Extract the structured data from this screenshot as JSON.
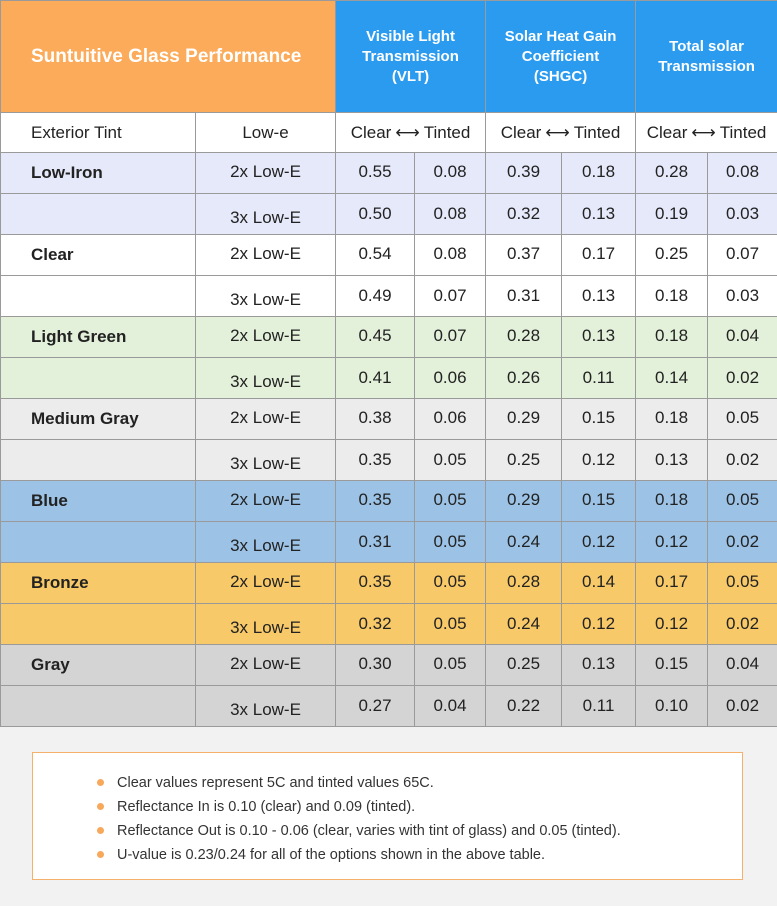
{
  "header": {
    "title": "Suntuitive Glass Performance",
    "metrics": [
      {
        "lines": [
          "Visible Light",
          "Transmission",
          "(VLT)"
        ]
      },
      {
        "lines": [
          "Solar Heat Gain",
          "Coefficient",
          "(SHGC)"
        ]
      },
      {
        "lines": [
          "Total solar",
          "Transmission"
        ]
      }
    ]
  },
  "subheader": {
    "tint_label": "Exterior Tint",
    "lowe_label": "Low-e",
    "clear_label": "Clear",
    "tinted_label": "Tinted"
  },
  "rows": [
    {
      "tint": "Low-Iron",
      "bg": "#e6e9fa",
      "r1": {
        "lowe": "2x Low-E",
        "v": [
          "0.55",
          "0.08",
          "0.39",
          "0.18",
          "0.28",
          "0.08"
        ]
      },
      "r2": {
        "lowe": "3x Low-E",
        "v": [
          "0.50",
          "0.08",
          "0.32",
          "0.13",
          "0.19",
          "0.03"
        ]
      }
    },
    {
      "tint": "Clear",
      "bg": "#ffffff",
      "r1": {
        "lowe": "2x Low-E",
        "v": [
          "0.54",
          "0.08",
          "0.37",
          "0.17",
          "0.25",
          "0.07"
        ]
      },
      "r2": {
        "lowe": "3x Low-E",
        "v": [
          "0.49",
          "0.07",
          "0.31",
          "0.13",
          "0.18",
          "0.03"
        ]
      }
    },
    {
      "tint": "Light Green",
      "bg": "#e3f0da",
      "r1": {
        "lowe": "2x Low-E",
        "v": [
          "0.45",
          "0.07",
          "0.28",
          "0.13",
          "0.18",
          "0.04"
        ]
      },
      "r2": {
        "lowe": "3x Low-E",
        "v": [
          "0.41",
          "0.06",
          "0.26",
          "0.11",
          "0.14",
          "0.02"
        ]
      }
    },
    {
      "tint": "Medium Gray",
      "bg": "#ececec",
      "r1": {
        "lowe": "2x Low-E",
        "v": [
          "0.38",
          "0.06",
          "0.29",
          "0.15",
          "0.18",
          "0.05"
        ]
      },
      "r2": {
        "lowe": "3x Low-E",
        "v": [
          "0.35",
          "0.05",
          "0.25",
          "0.12",
          "0.13",
          "0.02"
        ]
      }
    },
    {
      "tint": "Blue",
      "bg": "#9cc3e6",
      "r1": {
        "lowe": "2x Low-E",
        "v": [
          "0.35",
          "0.05",
          "0.29",
          "0.15",
          "0.18",
          "0.05"
        ]
      },
      "r2": {
        "lowe": "3x Low-E",
        "v": [
          "0.31",
          "0.05",
          "0.24",
          "0.12",
          "0.12",
          "0.02"
        ]
      }
    },
    {
      "tint": "Bronze",
      "bg": "#f8c968",
      "r1": {
        "lowe": "2x Low-E",
        "v": [
          "0.35",
          "0.05",
          "0.28",
          "0.14",
          "0.17",
          "0.05"
        ]
      },
      "r2": {
        "lowe": "3x Low-E",
        "v": [
          "0.32",
          "0.05",
          "0.24",
          "0.12",
          "0.12",
          "0.02"
        ]
      }
    },
    {
      "tint": "Gray",
      "bg": "#d4d4d4",
      "r1": {
        "lowe": "2x Low-E",
        "v": [
          "0.30",
          "0.05",
          "0.25",
          "0.13",
          "0.15",
          "0.04"
        ]
      },
      "r2": {
        "lowe": "3x Low-E",
        "v": [
          "0.27",
          "0.04",
          "0.22",
          "0.11",
          "0.10",
          "0.02"
        ]
      }
    }
  ],
  "notes": [
    "Clear values represent 5C and tinted values 65C.",
    "Reflectance In is 0.10 (clear) and 0.09 (tinted).",
    "Reflectance Out is 0.10 - 0.06 (clear, varies with tint of glass) and 0.05 (tinted).",
    "U-value is 0.23/0.24 for all of the options shown in the above table."
  ]
}
